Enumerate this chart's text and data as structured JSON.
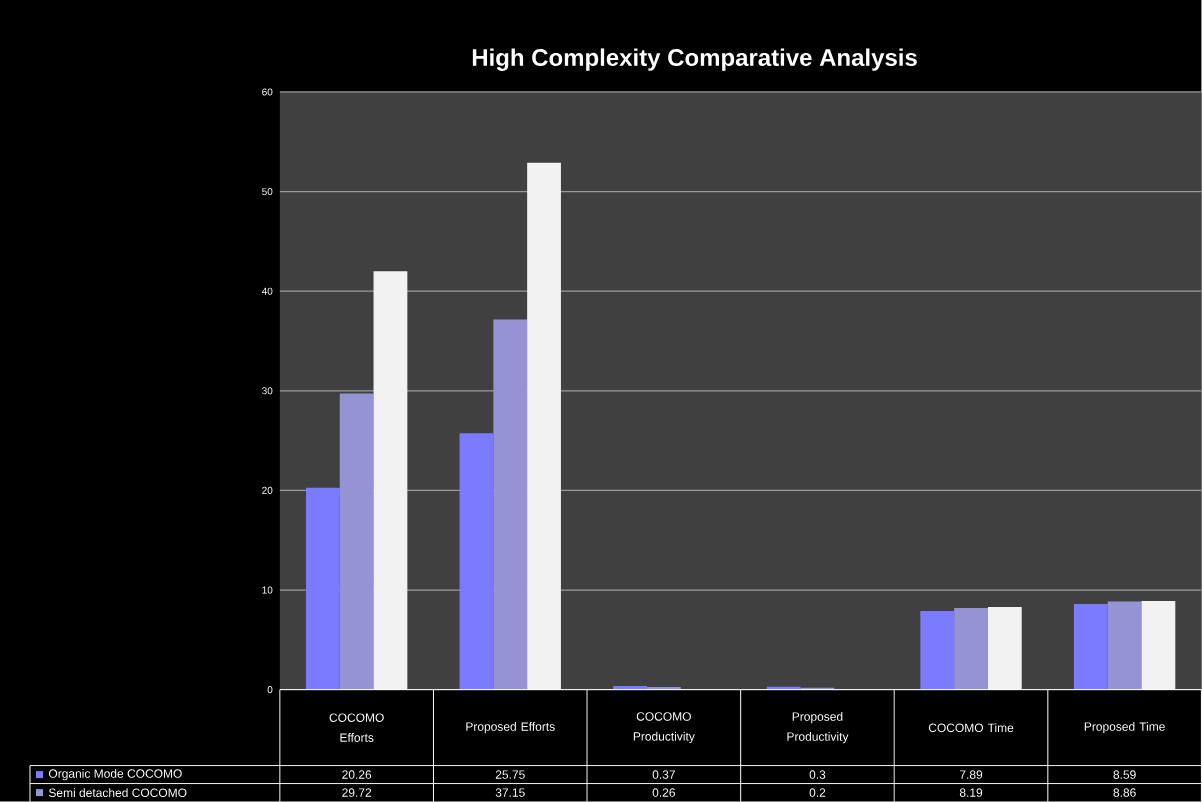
{
  "chart_data": {
    "type": "bar",
    "title": "High Complexity Comparative Analysis",
    "categories": [
      "COCOMO Efforts",
      "Proposed Efforts",
      "COCOMO Productivity",
      "Proposed Productivity",
      "COCOMO Time",
      "Proposed Time"
    ],
    "series": [
      {
        "name": "Organic Mode  COCOMO",
        "color": "#7b7bff",
        "values": [
          20.26,
          25.75,
          0.37,
          0.3,
          7.89,
          8.59
        ],
        "value_labels": [
          "20.26",
          "25.75",
          "0.37",
          "0.3",
          "7.89",
          "8.59"
        ]
      },
      {
        "name": "Semi detached  COCOMO",
        "color": "#9494d4",
        "values": [
          29.72,
          37.15,
          0.26,
          0.2,
          8.19,
          8.86
        ],
        "value_labels": [
          "29.72",
          "37.15",
          "0.26",
          "0.2",
          "8.19",
          "8.86"
        ]
      },
      {
        "color": "#f2f2f2",
        "values": [
          42.0,
          52.9,
          null,
          null,
          8.3,
          8.9
        ]
      }
    ],
    "ylim": [
      0,
      60
    ],
    "yticks": [
      0,
      10,
      20,
      30,
      40,
      50,
      60
    ],
    "grid": "y",
    "legend": "bottom"
  }
}
